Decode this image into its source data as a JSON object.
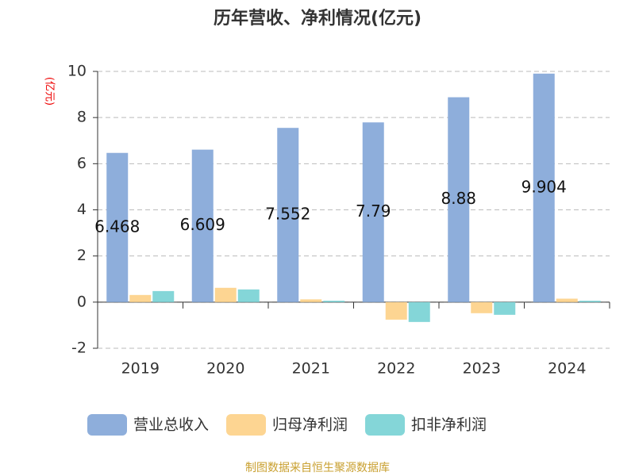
{
  "chart_data": {
    "type": "bar",
    "title": "历年营收、净利情况(亿元)",
    "y_label": "(亿元)",
    "source": "制图数据来自恒生聚源数据库",
    "categories": [
      "2019",
      "2020",
      "2021",
      "2022",
      "2023",
      "2024"
    ],
    "series": [
      {
        "name": "营业总收入",
        "color": "#8eaedb",
        "values": [
          6.468,
          6.609,
          7.552,
          7.79,
          8.88,
          9.904
        ],
        "show_labels": true
      },
      {
        "name": "归母净利润",
        "color": "#fdd592",
        "values": [
          0.31,
          0.62,
          0.12,
          -0.76,
          -0.48,
          0.15
        ]
      },
      {
        "name": "扣非净利润",
        "color": "#84d6d8",
        "values": [
          0.48,
          0.55,
          0.06,
          -0.86,
          -0.55,
          0.06
        ]
      }
    ],
    "ylim": [
      -2,
      10
    ],
    "yticks": [
      -2,
      0,
      2,
      4,
      6,
      8,
      10
    ],
    "grid": true
  }
}
